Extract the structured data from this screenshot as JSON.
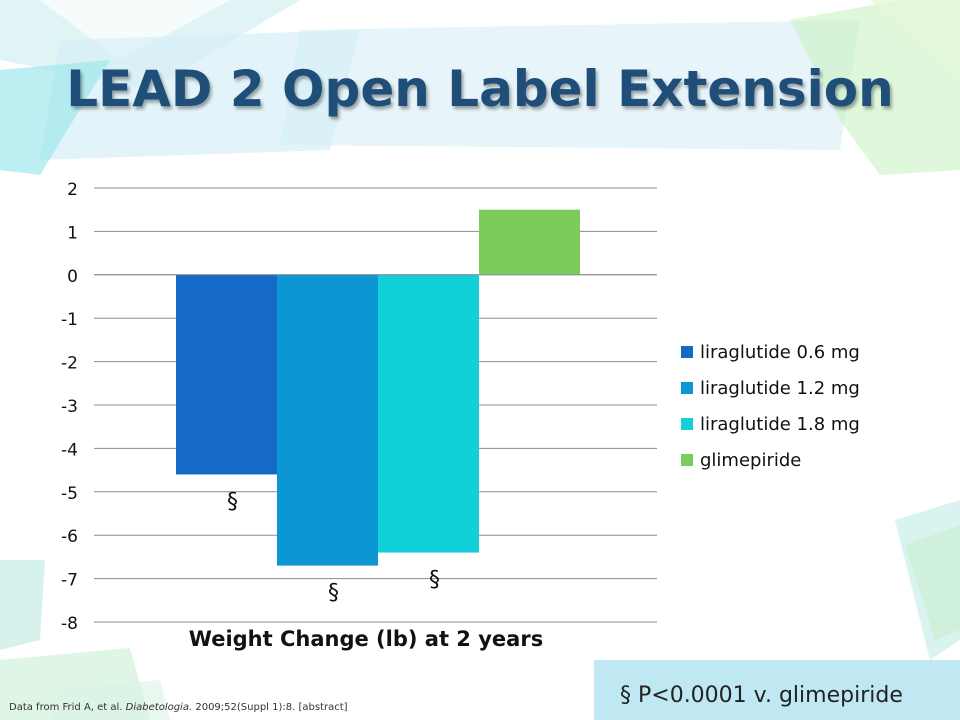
{
  "slide": {
    "title": "LEAD 2 Open Label Extension",
    "citation_prefix": "Data from Frid A, et al.",
    "citation_journal": "Diabetologia.",
    "citation_suffix": "2009;52(Suppl 1):8. [abstract]",
    "footnote": "§ P<0.0001 v. glimepiride"
  },
  "colors": {
    "title": "#1f4e79",
    "liraglutide_0_6": "#1569c7",
    "liraglutide_1_2": "#0d96d4",
    "liraglutide_1_8": "#12d0da",
    "glimepiride": "#7ccb5d"
  },
  "chart_data": {
    "type": "bar",
    "xlabel": "Weight Change (lb) at 2 years",
    "ylim": [
      -8,
      2
    ],
    "yticks": [
      "2",
      "1",
      "0",
      "-1",
      "-2",
      "-3",
      "-4",
      "-5",
      "-6",
      "-7",
      "-8"
    ],
    "grid": true,
    "legend_position": "right",
    "series": [
      {
        "name": "liraglutide 0.6 mg",
        "value": -4.6,
        "annotation": "§"
      },
      {
        "name": "liraglutide 1.2 mg",
        "value": -6.7,
        "annotation": "§"
      },
      {
        "name": "liraglutide 1.8 mg",
        "value": -6.4,
        "annotation": "§"
      },
      {
        "name": "glimepiride",
        "value": 1.5,
        "annotation": ""
      }
    ]
  }
}
